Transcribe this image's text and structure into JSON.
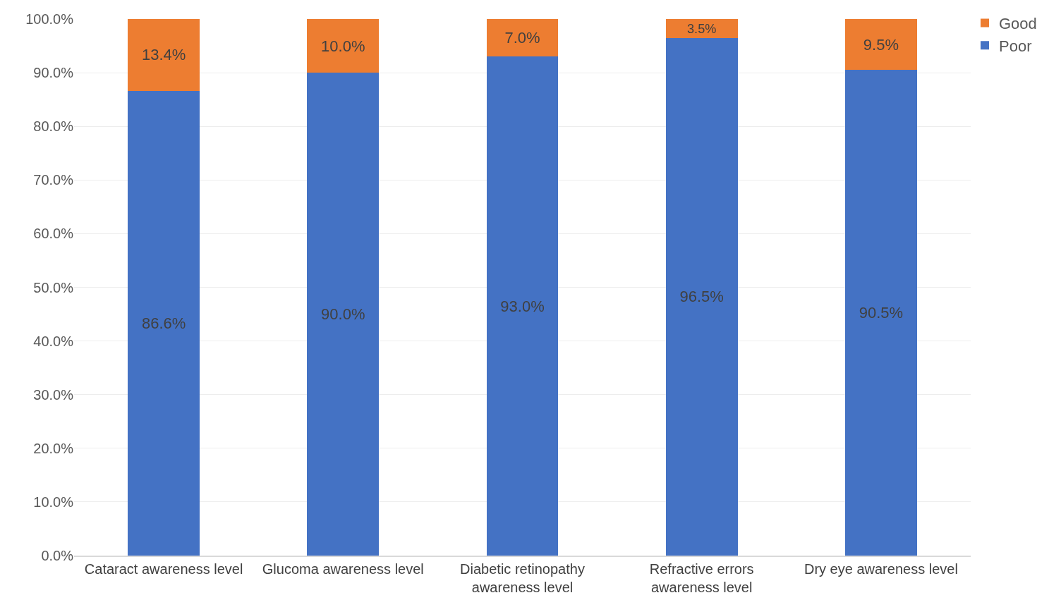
{
  "chart_data": {
    "type": "bar",
    "stacked": true,
    "categories": [
      "Cataract awareness level",
      "Glucoma awareness level",
      "Diabetic retinopathy awareness level",
      "Refractive errors awareness level",
      "Dry eye awareness level"
    ],
    "series": [
      {
        "name": "Poor",
        "color": "#4472c4",
        "values": [
          86.6,
          90.0,
          93.0,
          96.5,
          90.5
        ],
        "value_labels": [
          "86.6%",
          "90.0%",
          "93.0%",
          "96.5%",
          "90.5%"
        ]
      },
      {
        "name": "Good",
        "color": "#ed7d31",
        "values": [
          13.4,
          10.0,
          7.0,
          3.5,
          9.5
        ],
        "value_labels": [
          "13.4%",
          "10.0%",
          "7.0%",
          "3.5%",
          "9.5%"
        ]
      }
    ],
    "ylim": [
      0,
      100
    ],
    "yticks": [
      {
        "value": 0,
        "label": "0.0%"
      },
      {
        "value": 10,
        "label": "10.0%"
      },
      {
        "value": 20,
        "label": "20.0%"
      },
      {
        "value": 30,
        "label": "30.0%"
      },
      {
        "value": 40,
        "label": "40.0%"
      },
      {
        "value": 50,
        "label": "50.0%"
      },
      {
        "value": 60,
        "label": "60.0%"
      },
      {
        "value": 70,
        "label": "70.0%"
      },
      {
        "value": 80,
        "label": "80.0%"
      },
      {
        "value": 90,
        "label": "90.0%"
      },
      {
        "value": 100,
        "label": "100.0%"
      }
    ],
    "grid": "y",
    "legend": "top right"
  }
}
